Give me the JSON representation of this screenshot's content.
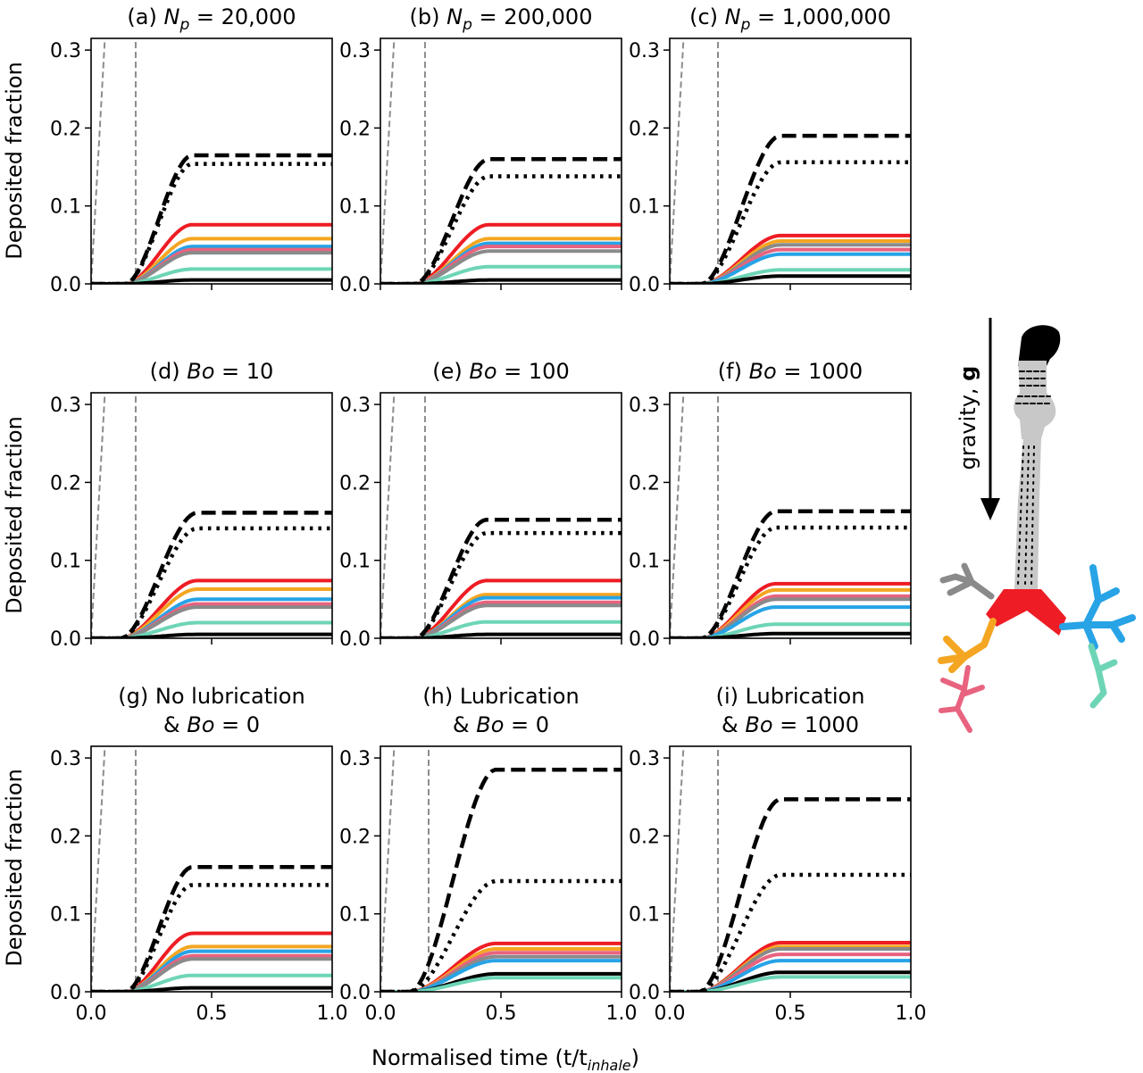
{
  "figure": {
    "ylabel": "Deposited fraction",
    "xlabel": "Normalised time (t/t",
    "xlabel_sub": "inhale",
    "xlabel_close": ")",
    "gravity_label": "gravity, ",
    "gravity_symbol": "g"
  },
  "colors": {
    "red": "#ee1c24",
    "orange": "#f4a622",
    "blue": "#27a3e6",
    "pink": "#e8637f",
    "grey": "#8a8a8a",
    "green": "#6dd5b6",
    "black": "#000000",
    "guide": "#8c8c8c",
    "airway": "#c8c8c8"
  },
  "chart_data": [
    {
      "id": "a",
      "type": "line",
      "title": "(a) N",
      "title_sub": "p",
      "title_rest": " =  20,000",
      "xlim": [
        0,
        1
      ],
      "ylim": [
        0,
        0.315
      ],
      "xticks": [
        "0.0",
        "0.5",
        "1.0"
      ],
      "yticks": [
        "0.0",
        "0.1",
        "0.2",
        "0.3"
      ],
      "guides": [
        0.06,
        0.185
      ],
      "onset": 0.14,
      "rise_end": 0.42,
      "series": [
        {
          "key": "dashed",
          "style": "dashed",
          "color": "black",
          "final": 0.165
        },
        {
          "key": "dotted",
          "style": "dotted",
          "color": "black",
          "final": 0.154
        },
        {
          "key": "red",
          "style": "solid",
          "color": "red",
          "final": 0.076
        },
        {
          "key": "orange",
          "style": "solid",
          "color": "orange",
          "final": 0.058
        },
        {
          "key": "blue",
          "style": "solid",
          "color": "blue",
          "final": 0.048
        },
        {
          "key": "pink",
          "style": "solid",
          "color": "pink",
          "final": 0.044
        },
        {
          "key": "grey",
          "style": "solid",
          "color": "grey",
          "final": 0.04
        },
        {
          "key": "green",
          "style": "solid",
          "color": "green",
          "final": 0.019
        },
        {
          "key": "black-solid",
          "style": "solid",
          "color": "black",
          "final": 0.005
        }
      ]
    },
    {
      "id": "b",
      "type": "line",
      "title": "(b) N",
      "title_sub": "p",
      "title_rest": " =  200,000",
      "xlim": [
        0,
        1
      ],
      "ylim": [
        0,
        0.315
      ],
      "xticks": [
        "0.0",
        "0.5",
        "1.0"
      ],
      "yticks": [
        "0.0",
        "0.1",
        "0.2",
        "0.3"
      ],
      "guides": [
        0.06,
        0.185
      ],
      "onset": 0.14,
      "rise_end": 0.45,
      "series": [
        {
          "key": "dashed",
          "style": "dashed",
          "color": "black",
          "final": 0.16
        },
        {
          "key": "dotted",
          "style": "dotted",
          "color": "black",
          "final": 0.138
        },
        {
          "key": "red",
          "style": "solid",
          "color": "red",
          "final": 0.076
        },
        {
          "key": "orange",
          "style": "solid",
          "color": "orange",
          "final": 0.058
        },
        {
          "key": "blue",
          "style": "solid",
          "color": "blue",
          "final": 0.052
        },
        {
          "key": "pink",
          "style": "solid",
          "color": "pink",
          "final": 0.048
        },
        {
          "key": "grey",
          "style": "solid",
          "color": "grey",
          "final": 0.042
        },
        {
          "key": "green",
          "style": "solid",
          "color": "green",
          "final": 0.022
        },
        {
          "key": "black-solid",
          "style": "solid",
          "color": "black",
          "final": 0.005
        }
      ]
    },
    {
      "id": "c",
      "type": "line",
      "title": "(c) N",
      "title_sub": "p",
      "title_rest": " =  1,000,000",
      "xlim": [
        0,
        1
      ],
      "ylim": [
        0,
        0.315
      ],
      "xticks": [
        "0.0",
        "0.5",
        "1.0"
      ],
      "yticks": [
        "0.0",
        "0.1",
        "0.2",
        "0.3"
      ],
      "guides": [
        0.06,
        0.2
      ],
      "onset": 0.13,
      "rise_end": 0.46,
      "series": [
        {
          "key": "dashed",
          "style": "dashed",
          "color": "black",
          "final": 0.19
        },
        {
          "key": "dotted",
          "style": "dotted",
          "color": "black",
          "final": 0.156
        },
        {
          "key": "red",
          "style": "solid",
          "color": "red",
          "final": 0.062
        },
        {
          "key": "orange",
          "style": "solid",
          "color": "orange",
          "final": 0.055
        },
        {
          "key": "grey",
          "style": "solid",
          "color": "grey",
          "final": 0.05
        },
        {
          "key": "pink",
          "style": "solid",
          "color": "pink",
          "final": 0.044
        },
        {
          "key": "blue",
          "style": "solid",
          "color": "blue",
          "final": 0.038
        },
        {
          "key": "green",
          "style": "solid",
          "color": "green",
          "final": 0.018
        },
        {
          "key": "black-solid",
          "style": "solid",
          "color": "black",
          "final": 0.01
        }
      ]
    },
    {
      "id": "d",
      "type": "line",
      "title": "(d) Bo",
      "title_sub": "",
      "title_rest": " = 10",
      "xlim": [
        0,
        1
      ],
      "ylim": [
        0,
        0.315
      ],
      "xticks": [
        "0.0",
        "0.5",
        "1.0"
      ],
      "yticks": [
        "0.0",
        "0.1",
        "0.2",
        "0.3"
      ],
      "guides": [
        0.06,
        0.185
      ],
      "onset": 0.12,
      "rise_end": 0.44,
      "series": [
        {
          "key": "dashed",
          "style": "dashed",
          "color": "black",
          "final": 0.161
        },
        {
          "key": "dotted",
          "style": "dotted",
          "color": "black",
          "final": 0.141
        },
        {
          "key": "red",
          "style": "solid",
          "color": "red",
          "final": 0.074
        },
        {
          "key": "orange",
          "style": "solid",
          "color": "orange",
          "final": 0.063
        },
        {
          "key": "blue",
          "style": "solid",
          "color": "blue",
          "final": 0.05
        },
        {
          "key": "pink",
          "style": "solid",
          "color": "pink",
          "final": 0.044
        },
        {
          "key": "grey",
          "style": "solid",
          "color": "grey",
          "final": 0.04
        },
        {
          "key": "green",
          "style": "solid",
          "color": "green",
          "final": 0.02
        },
        {
          "key": "black-solid",
          "style": "solid",
          "color": "black",
          "final": 0.005
        }
      ]
    },
    {
      "id": "e",
      "type": "line",
      "title": "(e) Bo",
      "title_sub": "",
      "title_rest": " = 100",
      "xlim": [
        0,
        1
      ],
      "ylim": [
        0,
        0.315
      ],
      "xticks": [
        "0.0",
        "0.5",
        "1.0"
      ],
      "yticks": [
        "0.0",
        "0.1",
        "0.2",
        "0.3"
      ],
      "guides": [
        0.06,
        0.185
      ],
      "onset": 0.14,
      "rise_end": 0.44,
      "series": [
        {
          "key": "dashed",
          "style": "dashed",
          "color": "black",
          "final": 0.152
        },
        {
          "key": "dotted",
          "style": "dotted",
          "color": "black",
          "final": 0.135
        },
        {
          "key": "red",
          "style": "solid",
          "color": "red",
          "final": 0.074
        },
        {
          "key": "orange",
          "style": "solid",
          "color": "orange",
          "final": 0.056
        },
        {
          "key": "blue",
          "style": "solid",
          "color": "blue",
          "final": 0.052
        },
        {
          "key": "pink",
          "style": "solid",
          "color": "pink",
          "final": 0.046
        },
        {
          "key": "grey",
          "style": "solid",
          "color": "grey",
          "final": 0.042
        },
        {
          "key": "green",
          "style": "solid",
          "color": "green",
          "final": 0.021
        },
        {
          "key": "black-solid",
          "style": "solid",
          "color": "black",
          "final": 0.005
        }
      ]
    },
    {
      "id": "f",
      "type": "line",
      "title": "(f) Bo",
      "title_sub": "",
      "title_rest": " = 1000",
      "xlim": [
        0,
        1
      ],
      "ylim": [
        0,
        0.315
      ],
      "xticks": [
        "0.0",
        "0.5",
        "1.0"
      ],
      "yticks": [
        "0.0",
        "0.1",
        "0.2",
        "0.3"
      ],
      "guides": [
        0.06,
        0.2
      ],
      "onset": 0.13,
      "rise_end": 0.44,
      "series": [
        {
          "key": "dashed",
          "style": "dashed",
          "color": "black",
          "final": 0.163
        },
        {
          "key": "dotted",
          "style": "dotted",
          "color": "black",
          "final": 0.142
        },
        {
          "key": "red",
          "style": "solid",
          "color": "red",
          "final": 0.07
        },
        {
          "key": "orange",
          "style": "solid",
          "color": "orange",
          "final": 0.062
        },
        {
          "key": "pink",
          "style": "solid",
          "color": "pink",
          "final": 0.054
        },
        {
          "key": "grey",
          "style": "solid",
          "color": "grey",
          "final": 0.05
        },
        {
          "key": "blue",
          "style": "solid",
          "color": "blue",
          "final": 0.04
        },
        {
          "key": "green",
          "style": "solid",
          "color": "green",
          "final": 0.018
        },
        {
          "key": "black-solid",
          "style": "solid",
          "color": "black",
          "final": 0.006
        }
      ]
    },
    {
      "id": "g",
      "type": "line",
      "title": "(g) No lubrication",
      "title_line2": "& Bo",
      "title_sub": "",
      "title_rest": " = 0",
      "xlim": [
        0,
        1
      ],
      "ylim": [
        0,
        0.315
      ],
      "xticks": [
        "0.0",
        "0.5",
        "1.0"
      ],
      "yticks": [
        "0.0",
        "0.1",
        "0.2",
        "0.3"
      ],
      "guides": [
        0.06,
        0.185
      ],
      "onset": 0.14,
      "rise_end": 0.42,
      "series": [
        {
          "key": "dashed",
          "style": "dashed",
          "color": "black",
          "final": 0.16
        },
        {
          "key": "dotted",
          "style": "dotted",
          "color": "black",
          "final": 0.137
        },
        {
          "key": "red",
          "style": "solid",
          "color": "red",
          "final": 0.075
        },
        {
          "key": "orange",
          "style": "solid",
          "color": "orange",
          "final": 0.058
        },
        {
          "key": "blue",
          "style": "solid",
          "color": "blue",
          "final": 0.052
        },
        {
          "key": "pink",
          "style": "solid",
          "color": "pink",
          "final": 0.046
        },
        {
          "key": "grey",
          "style": "solid",
          "color": "grey",
          "final": 0.042
        },
        {
          "key": "green",
          "style": "solid",
          "color": "green",
          "final": 0.021
        },
        {
          "key": "black-solid",
          "style": "solid",
          "color": "black",
          "final": 0.005
        }
      ]
    },
    {
      "id": "h",
      "type": "line",
      "title": "(h) Lubrication",
      "title_line2": "& Bo",
      "title_sub": "",
      "title_rest": " = 0",
      "xlim": [
        0,
        1
      ],
      "ylim": [
        0,
        0.315
      ],
      "xticks": [
        "0.0",
        "0.5",
        "1.0"
      ],
      "yticks": [
        "0.0",
        "0.1",
        "0.2",
        "0.3"
      ],
      "guides": [
        0.06,
        0.2
      ],
      "onset": 0.12,
      "rise_end": 0.48,
      "series": [
        {
          "key": "dashed",
          "style": "dashed",
          "color": "black",
          "final": 0.285
        },
        {
          "key": "dotted",
          "style": "dotted",
          "color": "black",
          "final": 0.142
        },
        {
          "key": "red",
          "style": "solid",
          "color": "red",
          "final": 0.062
        },
        {
          "key": "orange",
          "style": "solid",
          "color": "orange",
          "final": 0.055
        },
        {
          "key": "pink",
          "style": "solid",
          "color": "pink",
          "final": 0.05
        },
        {
          "key": "grey",
          "style": "solid",
          "color": "grey",
          "final": 0.045
        },
        {
          "key": "blue",
          "style": "solid",
          "color": "blue",
          "final": 0.04
        },
        {
          "key": "black-solid",
          "style": "solid",
          "color": "black",
          "final": 0.023
        },
        {
          "key": "green",
          "style": "solid",
          "color": "green",
          "final": 0.018
        }
      ]
    },
    {
      "id": "i",
      "type": "line",
      "title": "(i) Lubrication",
      "title_line2": "& Bo",
      "title_sub": "",
      "title_rest": " = 1000",
      "xlim": [
        0,
        1
      ],
      "ylim": [
        0,
        0.315
      ],
      "xticks": [
        "0.0",
        "0.5",
        "1.0"
      ],
      "yticks": [
        "0.0",
        "0.1",
        "0.2",
        "0.3"
      ],
      "guides": [
        0.06,
        0.2
      ],
      "onset": 0.12,
      "rise_end": 0.46,
      "series": [
        {
          "key": "dashed",
          "style": "dashed",
          "color": "black",
          "final": 0.247
        },
        {
          "key": "dotted",
          "style": "dotted",
          "color": "black",
          "final": 0.15
        },
        {
          "key": "red",
          "style": "solid",
          "color": "red",
          "final": 0.063
        },
        {
          "key": "orange",
          "style": "solid",
          "color": "orange",
          "final": 0.058
        },
        {
          "key": "grey",
          "style": "solid",
          "color": "grey",
          "final": 0.055
        },
        {
          "key": "pink",
          "style": "solid",
          "color": "pink",
          "final": 0.048
        },
        {
          "key": "blue",
          "style": "solid",
          "color": "blue",
          "final": 0.04
        },
        {
          "key": "black-solid",
          "style": "solid",
          "color": "black",
          "final": 0.025
        },
        {
          "key": "green",
          "style": "solid",
          "color": "green",
          "final": 0.019
        }
      ]
    }
  ]
}
